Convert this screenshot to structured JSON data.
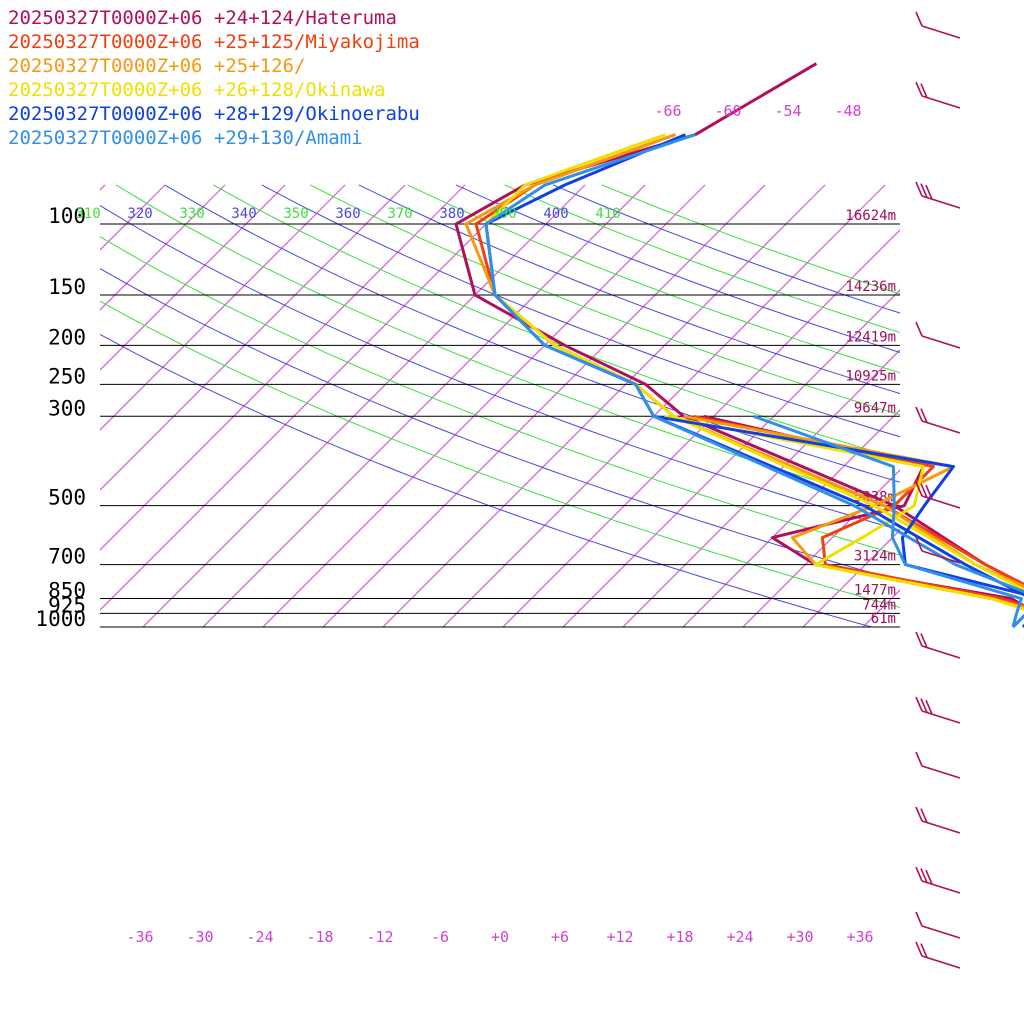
{
  "chart_data": {
    "type": "line",
    "legend_placement": "top-left",
    "legend": [
      {
        "label": "20250327T0000Z+06 +24+124/Hateruma",
        "color": "#b0105a"
      },
      {
        "label": "20250327T0000Z+06 +25+125/Miyakojima",
        "color": "#f04010"
      },
      {
        "label": "20250327T0000Z+06 +25+126/",
        "color": "#f59a10"
      },
      {
        "label": "20250327T0000Z+06 +26+128/Okinawa",
        "color": "#f0e000"
      },
      {
        "label": "20250327T0000Z+06 +28+129/Okinoerabu",
        "color": "#1040e0"
      },
      {
        "label": "20250327T0000Z+06 +29+130/Amami",
        "color": "#3090e8"
      }
    ],
    "pressure_levels": [
      {
        "p": 100,
        "label": "100",
        "height": "16624m"
      },
      {
        "p": 150,
        "label": "150",
        "height": "14236m"
      },
      {
        "p": 200,
        "label": "200",
        "height": "12419m"
      },
      {
        "p": 250,
        "label": "250",
        "height": "10925m"
      },
      {
        "p": 300,
        "label": "300",
        "height": "9647m"
      },
      {
        "p": 500,
        "label": "500",
        "height": "5838m"
      },
      {
        "p": 700,
        "label": "700",
        "height": "3124m"
      },
      {
        "p": 850,
        "label": "850",
        "height": "1477m"
      },
      {
        "p": 925,
        "label": "925",
        "height": "744m"
      },
      {
        "p": 1000,
        "label": "1000",
        "height": "61m"
      }
    ],
    "temperature_ticks": [
      "-36",
      "-30",
      "-24",
      "-18",
      "-12",
      "-6",
      "+0",
      "+6",
      "+12",
      "+18",
      "+24",
      "+30",
      "+36"
    ],
    "theta_ticks": [
      {
        "label": "310",
        "color": "#40dd40"
      },
      {
        "label": "320",
        "color": "#4848e0"
      },
      {
        "label": "330",
        "color": "#40dd40"
      },
      {
        "label": "340",
        "color": "#4848e0"
      },
      {
        "label": "350",
        "color": "#40dd40"
      },
      {
        "label": "360",
        "color": "#4848e0"
      },
      {
        "label": "370",
        "color": "#40dd40"
      },
      {
        "label": "380",
        "color": "#4848e0"
      },
      {
        "label": "390",
        "color": "#40dd40"
      },
      {
        "label": "400",
        "color": "#4848e0"
      },
      {
        "label": "410",
        "color": "#40dd40"
      }
    ],
    "mixing_ratio_ticks": [
      "-66",
      "-60",
      "-54",
      "-48"
    ],
    "series": [
      {
        "name": "Hateruma",
        "color": "#b0105a",
        "temperature": [
          [
            1000,
            24
          ],
          [
            925,
            25
          ],
          [
            850,
            22
          ],
          [
            700,
            12
          ],
          [
            500,
            -3
          ],
          [
            300,
            -33
          ],
          [
            250,
            -40
          ],
          [
            200,
            -52
          ],
          [
            150,
            -66
          ],
          [
            100,
            -75
          ],
          [
            80,
            -72
          ],
          [
            60,
            -60
          ],
          [
            40,
            -55
          ]
        ],
        "dewpoint": [
          [
            1000,
            23
          ],
          [
            925,
            22
          ],
          [
            850,
            18
          ],
          [
            700,
            -5
          ],
          [
            600,
            -12
          ],
          [
            500,
            -2
          ],
          [
            400,
            -4
          ],
          [
            300,
            -31
          ]
        ]
      },
      {
        "name": "Miyakojima",
        "color": "#f04010",
        "temperature": [
          [
            1000,
            24
          ],
          [
            925,
            24
          ],
          [
            850,
            22
          ],
          [
            700,
            12
          ],
          [
            500,
            -4
          ],
          [
            300,
            -34
          ],
          [
            250,
            -41
          ],
          [
            200,
            -53
          ],
          [
            150,
            -64
          ],
          [
            100,
            -73
          ],
          [
            80,
            -71
          ],
          [
            60,
            -62
          ]
        ],
        "dewpoint": [
          [
            1000,
            22
          ],
          [
            925,
            23
          ],
          [
            850,
            17
          ],
          [
            700,
            -4
          ],
          [
            600,
            -7
          ],
          [
            500,
            -3
          ],
          [
            400,
            -3
          ],
          [
            300,
            -32
          ]
        ]
      },
      {
        "name": "+25+126",
        "color": "#f59a10",
        "temperature": [
          [
            1000,
            23
          ],
          [
            925,
            24
          ],
          [
            850,
            22
          ],
          [
            700,
            11
          ],
          [
            500,
            -4
          ],
          [
            300,
            -34
          ],
          [
            250,
            -41
          ],
          [
            200,
            -53
          ],
          [
            150,
            -64
          ],
          [
            100,
            -74
          ],
          [
            80,
            -71
          ],
          [
            60,
            -62
          ]
        ],
        "dewpoint": [
          [
            1000,
            22
          ],
          [
            925,
            23
          ],
          [
            850,
            16
          ],
          [
            700,
            -5
          ],
          [
            600,
            -10
          ],
          [
            500,
            -5
          ],
          [
            400,
            -1
          ],
          [
            300,
            -33
          ]
        ]
      },
      {
        "name": "Okinawa",
        "color": "#f0e000",
        "temperature": [
          [
            1000,
            23
          ],
          [
            925,
            24
          ],
          [
            850,
            21
          ],
          [
            700,
            11
          ],
          [
            500,
            -5
          ],
          [
            300,
            -34
          ],
          [
            250,
            -41
          ],
          [
            200,
            -53
          ],
          [
            150,
            -64
          ],
          [
            100,
            -72
          ],
          [
            80,
            -72
          ],
          [
            60,
            -63
          ]
        ],
        "dewpoint": [
          [
            1000,
            22
          ],
          [
            925,
            22
          ],
          [
            850,
            16
          ],
          [
            700,
            -5
          ],
          [
            600,
            -3
          ],
          [
            500,
            -1
          ],
          [
            400,
            -4
          ],
          [
            300,
            -35
          ]
        ]
      },
      {
        "name": "Okinoerabu",
        "color": "#1040e0",
        "temperature": [
          [
            1000,
            22
          ],
          [
            925,
            22
          ],
          [
            850,
            20
          ],
          [
            700,
            10
          ],
          [
            500,
            -6
          ],
          [
            300,
            -36
          ],
          [
            250,
            -41
          ],
          [
            200,
            -54
          ],
          [
            150,
            -64
          ],
          [
            100,
            -72
          ],
          [
            80,
            -68
          ],
          [
            60,
            -61
          ]
        ],
        "dewpoint": [
          [
            1000,
            21
          ],
          [
            925,
            21
          ],
          [
            850,
            21
          ],
          [
            700,
            4
          ],
          [
            600,
            1
          ],
          [
            500,
            0
          ],
          [
            400,
            -1
          ],
          [
            300,
            -36
          ]
        ]
      },
      {
        "name": "Amami",
        "color": "#3090e8",
        "temperature": [
          [
            1000,
            21
          ],
          [
            925,
            21
          ],
          [
            850,
            21
          ],
          [
            700,
            9
          ],
          [
            500,
            -7
          ],
          [
            300,
            -36
          ],
          [
            250,
            -41
          ],
          [
            200,
            -54
          ],
          [
            150,
            -64
          ],
          [
            100,
            -72
          ],
          [
            80,
            -70
          ],
          [
            60,
            -60
          ]
        ],
        "dewpoint": [
          [
            1000,
            21
          ],
          [
            925,
            20
          ],
          [
            850,
            19
          ],
          [
            700,
            4
          ],
          [
            600,
            0
          ],
          [
            500,
            -3
          ],
          [
            400,
            -7
          ],
          [
            300,
            -26
          ]
        ]
      }
    ]
  }
}
